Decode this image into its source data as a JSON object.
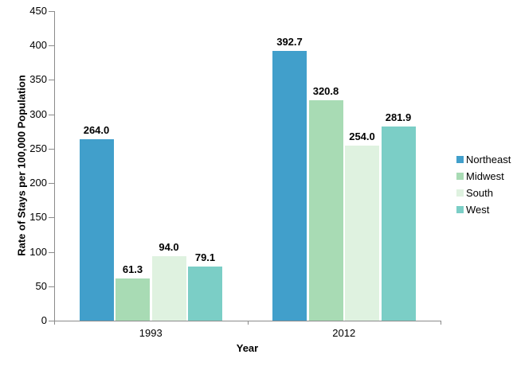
{
  "chart_data": {
    "type": "bar",
    "title": "",
    "xlabel": "Year",
    "ylabel": "Rate of Stays per 100,000 Population",
    "categories": [
      "1993",
      "2012"
    ],
    "series": [
      {
        "name": "Northeast",
        "color": "#419FCB",
        "values": [
          264.0,
          392.7
        ],
        "labels": [
          "264.0",
          "392.7"
        ]
      },
      {
        "name": "Midwest",
        "color": "#A8DBB4",
        "values": [
          61.3,
          320.8
        ],
        "labels": [
          "61.3",
          "320.8"
        ]
      },
      {
        "name": "South",
        "color": "#DFF2E0",
        "values": [
          94.0,
          254.0
        ],
        "labels": [
          "94.0",
          "254.0"
        ]
      },
      {
        "name": "West",
        "color": "#7BCEC6",
        "values": [
          79.1,
          281.9
        ],
        "labels": [
          "79.1",
          "281.9"
        ]
      }
    ],
    "ylim": [
      0,
      450
    ],
    "yticks": [
      0,
      50,
      100,
      150,
      200,
      250,
      300,
      350,
      400,
      450
    ],
    "grid": false,
    "legend_position": "right",
    "axis_color": "#8B8B8B",
    "label_color": "#000000"
  }
}
